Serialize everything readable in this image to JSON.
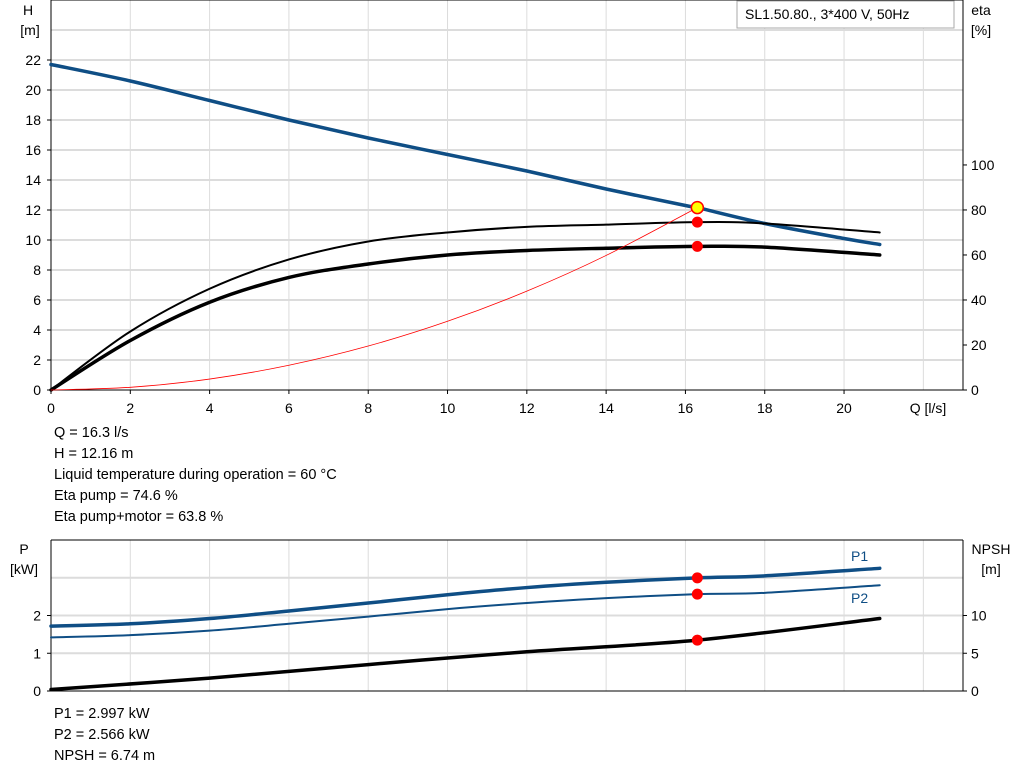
{
  "chart_data": [
    {
      "type": "line",
      "title": "SL1.50.80., 3*400 V, 50Hz",
      "xlabel": "Q [l/s]",
      "ylabel": "H [m]",
      "ylabel_line1": "H",
      "ylabel_line2": "[m]",
      "y2label_line1": "eta",
      "y2label_line2": "[%]",
      "xlim": [
        0,
        23
      ],
      "ylim": [
        0,
        26
      ],
      "y2lim": [
        0,
        173.3
      ],
      "xticks": [
        0,
        2,
        4,
        6,
        8,
        10,
        12,
        14,
        16,
        18,
        20
      ],
      "yticks": [
        0,
        2,
        4,
        6,
        8,
        10,
        12,
        14,
        16,
        18,
        20,
        22
      ],
      "y2ticks": [
        0,
        20,
        40,
        60,
        80,
        100
      ],
      "grid": true,
      "series": [
        {
          "name": "H",
          "axis": "left",
          "color": "#0f4e85",
          "width": 3.5,
          "x": [
            0,
            2,
            4,
            6,
            8,
            10,
            12,
            14,
            16,
            16.3,
            18,
            20,
            20.9
          ],
          "y": [
            21.7,
            20.6,
            19.3,
            18.0,
            16.8,
            15.7,
            14.6,
            13.4,
            12.3,
            12.16,
            11.1,
            10.1,
            9.7
          ]
        },
        {
          "name": "Eta pump",
          "axis": "right",
          "color": "#000000",
          "width": 2,
          "x": [
            0,
            2,
            4,
            6,
            8,
            10,
            12,
            14,
            16.3,
            18,
            20.9
          ],
          "y": [
            0,
            26,
            45,
            58,
            66,
            70,
            72.5,
            73.5,
            74.6,
            74,
            70
          ]
        },
        {
          "name": "Eta pump+motor",
          "axis": "right",
          "color": "#000000",
          "width": 3.5,
          "x": [
            0,
            2,
            4,
            6,
            8,
            10,
            12,
            14,
            16.3,
            18,
            20.9
          ],
          "y": [
            0,
            22,
            39,
            50,
            56,
            60,
            62,
            63,
            63.8,
            63.5,
            60
          ]
        },
        {
          "name": "System curve",
          "axis": "left",
          "color": "#ff0000",
          "width": 0.8,
          "x": [
            0,
            2,
            4,
            6,
            8,
            10,
            12,
            14,
            16.3
          ],
          "y": [
            0,
            0.18,
            0.73,
            1.65,
            2.93,
            4.58,
            6.59,
            8.97,
            12.16
          ]
        }
      ],
      "duty_point": {
        "x": 16.3,
        "H": 12.16,
        "eta_pump": 74.6,
        "eta_total": 63.8
      }
    },
    {
      "type": "line",
      "ylabel_line1": "P",
      "ylabel_line2": "[kW]",
      "y2label_line1": "NPSH",
      "y2label_line2": "[m]",
      "xlim": [
        0,
        23
      ],
      "ylim": [
        0,
        4
      ],
      "y2lim": [
        0,
        20
      ],
      "yticks": [
        0,
        1,
        2
      ],
      "y2ticks": [
        0,
        5,
        10
      ],
      "grid": true,
      "series": [
        {
          "name": "P1",
          "label": "P1",
          "axis": "left",
          "color": "#0f4e85",
          "width": 3.5,
          "x": [
            0,
            2,
            4,
            6,
            8,
            10,
            12,
            14,
            16.3,
            18,
            20.9
          ],
          "y": [
            1.72,
            1.78,
            1.92,
            2.12,
            2.33,
            2.55,
            2.74,
            2.88,
            2.997,
            3.05,
            3.25
          ]
        },
        {
          "name": "P2",
          "label": "P2",
          "axis": "left",
          "color": "#0f4e85",
          "width": 2,
          "x": [
            0,
            2,
            4,
            6,
            8,
            10,
            12,
            14,
            16.3,
            18,
            20.9
          ],
          "y": [
            1.42,
            1.48,
            1.6,
            1.78,
            1.97,
            2.17,
            2.33,
            2.46,
            2.566,
            2.6,
            2.8
          ]
        },
        {
          "name": "NPSH",
          "axis": "right",
          "color": "#000000",
          "width": 3.5,
          "x": [
            0,
            4,
            8,
            12,
            16.3,
            20.9
          ],
          "y": [
            0.2,
            1.7,
            3.5,
            5.2,
            6.74,
            9.6
          ]
        }
      ],
      "duty_point": {
        "x": 16.3,
        "P1": 2.997,
        "P2": 2.566,
        "NPSH": 6.74
      }
    }
  ],
  "info_top": [
    "Q = 16.3 l/s",
    "H = 12.16 m",
    "Liquid temperature during operation = 60 °C",
    "Eta pump = 74.6 %",
    "Eta pump+motor = 63.8 %"
  ],
  "info_bottom": [
    "P1 = 2.997 kW",
    "P2 = 2.566 kW",
    "NPSH = 6.74 m"
  ],
  "colors": {
    "blue": "#0f4e85",
    "marker": "#ff0000",
    "duty": "#ffff00"
  }
}
